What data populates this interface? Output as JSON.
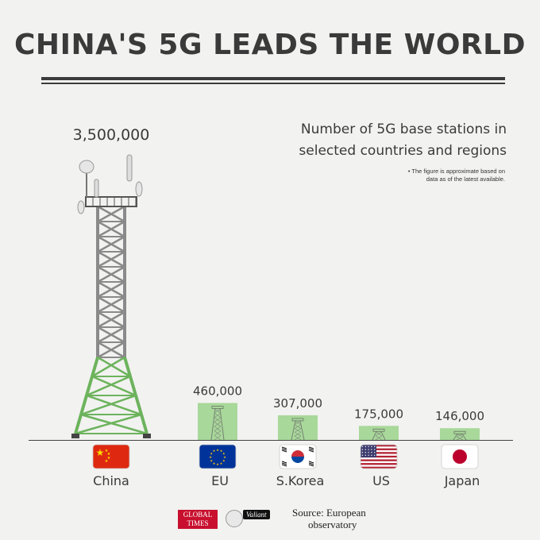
{
  "header": {
    "title": "CHINA'S 5G LEADS THE WORLD"
  },
  "description": {
    "line1": "Number of 5G base stations in",
    "line2": "selected countries and regions",
    "note_line1": "• The figure is approximate based on",
    "note_line2": "data as of the latest available."
  },
  "chart_data": {
    "type": "bar",
    "categories": [
      "China",
      "EU",
      "S.Korea",
      "US",
      "Japan"
    ],
    "values": [
      3500000,
      460000,
      307000,
      175000,
      146000
    ],
    "value_labels": [
      "3,500,000",
      "460,000",
      "307,000",
      "175,000",
      "146,000"
    ],
    "title": "",
    "xlabel": "",
    "ylabel": "",
    "ylim": [
      0,
      3500000
    ],
    "grid": false,
    "bar_color": "#a8d89a",
    "tower_steel_color": "#8a8a8a",
    "tower_base_color": "#6cb35c",
    "flags": [
      "china-flag",
      "eu-flag",
      "south-korea-flag",
      "us-flag",
      "japan-flag"
    ]
  },
  "footer": {
    "logo_global_times_line1": "GLOBAL",
    "logo_global_times_line2": "TIMES",
    "logo_valiant": "Valiant",
    "source_line1": "Source: European",
    "source_line2": "observatory"
  }
}
